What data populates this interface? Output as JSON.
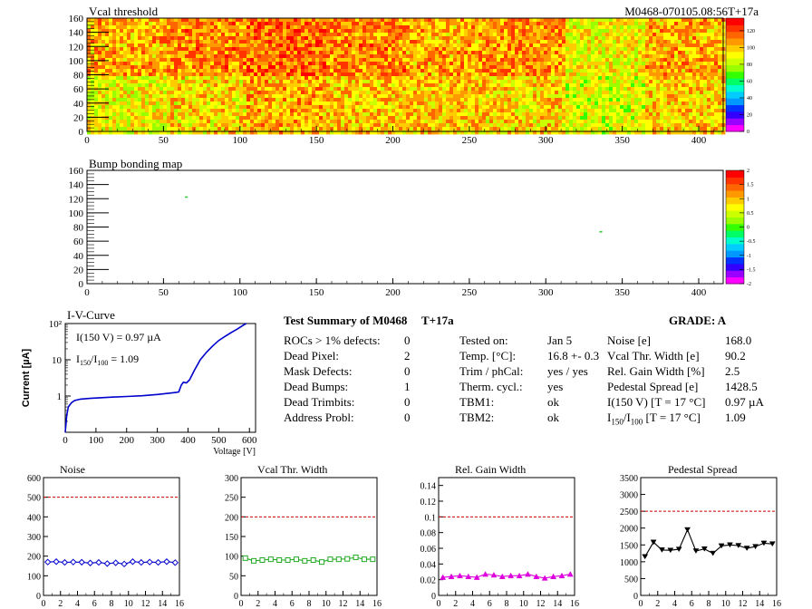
{
  "colors": {
    "heat": [
      "#ff00ff",
      "#9900ff",
      "#3300ff",
      "#0033ff",
      "#0099ff",
      "#00ccff",
      "#00ffcc",
      "#00ff66",
      "#33ff00",
      "#99ff00",
      "#ccff00",
      "#ffff00",
      "#ffcc00",
      "#ff9900",
      "#ff6600",
      "#ff3300",
      "#ff0000"
    ],
    "curve_blue": "#0000cc",
    "limit_red": "#cc0000",
    "noise_series": "#0000cc",
    "vcal_series": "#22aa22",
    "gain_series": "#dd00dd",
    "ped_series": "#000000"
  },
  "chart_data": [
    {
      "type": "heatmap",
      "title": "Vcal threshold",
      "header_right": "M0468-070105.08:56T+17a",
      "xlim": [
        0,
        416
      ],
      "ylim": [
        0,
        160
      ],
      "x_ticks": [
        0,
        50,
        100,
        150,
        200,
        250,
        300,
        350,
        400
      ],
      "y_ticks": [
        0,
        20,
        40,
        60,
        80,
        100,
        120,
        140,
        160
      ],
      "z_ticks": [
        0,
        20,
        40,
        60,
        80,
        100,
        120
      ],
      "zlim": [
        0,
        135
      ],
      "roc_means_top": [
        104,
        110,
        114,
        110,
        104,
        108,
        90,
        104
      ],
      "roc_means_bottom": [
        90,
        96,
        104,
        100,
        100,
        96,
        86,
        98
      ]
    },
    {
      "type": "heatmap",
      "title": "Bump bonding map",
      "xlim": [
        0,
        416
      ],
      "ylim": [
        0,
        160
      ],
      "x_ticks": [
        0,
        50,
        100,
        150,
        200,
        250,
        300,
        350,
        400
      ],
      "y_ticks": [
        0,
        20,
        40,
        60,
        80,
        100,
        120,
        140,
        160
      ],
      "z_ticks": [
        "2",
        "1.5",
        "1",
        "0.5",
        "0",
        "-0.5",
        "-1",
        "-1.5",
        "-2"
      ],
      "zlim": [
        -2,
        2
      ],
      "points": [
        {
          "x": 65,
          "y": 122,
          "z": 0
        },
        {
          "x": 336,
          "y": 73,
          "z": 0
        }
      ]
    },
    {
      "type": "line",
      "title": "I-V-Curve",
      "xlabel": "Voltage [V]",
      "ylabel": "Current [µA]",
      "x_ticks": [
        0,
        100,
        200,
        300,
        400,
        500,
        600
      ],
      "xlim": [
        0,
        620
      ],
      "ylim": [
        0.1,
        100
      ],
      "y_scale": "log",
      "y_ticks": [
        "1",
        "10",
        "10²"
      ],
      "annotation_1": "I(150 V) = 0.97 µA",
      "annotation_2_main": "I",
      "annotation_2_sub1": "150",
      "annotation_2_mid": "/I",
      "annotation_2_sub2": "100",
      "annotation_2_val": " =  1.09",
      "x": [
        0,
        5,
        10,
        20,
        30,
        50,
        80,
        120,
        160,
        200,
        250,
        300,
        340,
        360,
        370,
        378,
        385,
        395,
        405,
        420,
        440,
        460,
        480,
        500,
        520,
        540,
        560,
        580,
        590
      ],
      "y": [
        0.1,
        0.3,
        0.5,
        0.65,
        0.75,
        0.82,
        0.86,
        0.9,
        0.94,
        0.97,
        1.02,
        1.1,
        1.2,
        1.25,
        1.3,
        2.0,
        2.4,
        2.3,
        2.8,
        5.0,
        10,
        16,
        24,
        34,
        44,
        56,
        70,
        90,
        100
      ]
    },
    {
      "type": "line",
      "title": "Noise",
      "x_ticks": [
        0,
        2,
        4,
        6,
        8,
        10,
        12,
        14,
        16
      ],
      "y_ticks": [
        0,
        100,
        200,
        300,
        400,
        500,
        600
      ],
      "xlim": [
        0,
        16
      ],
      "ylim": [
        0,
        600
      ],
      "limit": 500,
      "x": [
        0.5,
        1.5,
        2.5,
        3.5,
        4.5,
        5.5,
        6.5,
        7.5,
        8.5,
        9.5,
        10.5,
        11.5,
        12.5,
        13.5,
        14.5,
        15.5
      ],
      "y": [
        170,
        172,
        168,
        170,
        169,
        165,
        168,
        162,
        166,
        160,
        172,
        168,
        170,
        168,
        172,
        167
      ]
    },
    {
      "type": "line",
      "title": "Vcal Thr. Width",
      "x_ticks": [
        0,
        2,
        4,
        6,
        8,
        10,
        12,
        14,
        16
      ],
      "y_ticks": [
        0,
        50,
        100,
        150,
        200,
        250,
        300
      ],
      "xlim": [
        0,
        16
      ],
      "ylim": [
        0,
        300
      ],
      "limit": 200,
      "x": [
        0.5,
        1.5,
        2.5,
        3.5,
        4.5,
        5.5,
        6.5,
        7.5,
        8.5,
        9.5,
        10.5,
        11.5,
        12.5,
        13.5,
        14.5,
        15.5
      ],
      "y": [
        95,
        88,
        90,
        92,
        90,
        90,
        92,
        88,
        90,
        85,
        92,
        92,
        93,
        97,
        92,
        92
      ]
    },
    {
      "type": "line",
      "title": "Rel. Gain Width",
      "x_ticks": [
        0,
        2,
        4,
        6,
        8,
        10,
        12,
        14,
        16
      ],
      "y_ticks": [
        "0",
        "0.02",
        "0.04",
        "0.06",
        "0.08",
        "0.1",
        "0.12",
        "0.14"
      ],
      "xlim": [
        0,
        16
      ],
      "ylim": [
        0,
        0.15
      ],
      "limit": 0.1,
      "x": [
        0.5,
        1.5,
        2.5,
        3.5,
        4.5,
        5.5,
        6.5,
        7.5,
        8.5,
        9.5,
        10.5,
        11.5,
        12.5,
        13.5,
        14.5,
        15.5
      ],
      "y": [
        0.023,
        0.024,
        0.025,
        0.024,
        0.023,
        0.027,
        0.026,
        0.024,
        0.025,
        0.025,
        0.027,
        0.024,
        0.022,
        0.024,
        0.025,
        0.027
      ]
    },
    {
      "type": "line",
      "title": "Pedestal Spread",
      "x_ticks": [
        0,
        2,
        4,
        6,
        8,
        10,
        12,
        14,
        16
      ],
      "y_ticks": [
        0,
        500,
        1000,
        1500,
        2000,
        2500,
        3000,
        3500
      ],
      "xlim": [
        0,
        16
      ],
      "ylim": [
        0,
        3500
      ],
      "limit": 2500,
      "x": [
        0.5,
        1.5,
        2.5,
        3.5,
        4.5,
        5.5,
        6.5,
        7.5,
        8.5,
        9.5,
        10.5,
        11.5,
        12.5,
        13.5,
        14.5,
        15.5
      ],
      "y": [
        1150,
        1580,
        1350,
        1340,
        1370,
        1950,
        1320,
        1380,
        1250,
        1470,
        1500,
        1480,
        1400,
        1450,
        1550,
        1530
      ]
    }
  ],
  "summary": {
    "title": "Test Summary of M0468",
    "tag": "T+17a",
    "grade_label": "GRADE:  A",
    "col1": [
      {
        "label": "ROCs > 1% defects:",
        "value": "0"
      },
      {
        "label": "Dead Pixel:",
        "value": "2"
      },
      {
        "label": "Mask Defects:",
        "value": "0"
      },
      {
        "label": "Dead Bumps:",
        "value": "1"
      },
      {
        "label": "Dead Trimbits:",
        "value": "0"
      },
      {
        "label": "Address Probl:",
        "value": "0"
      }
    ],
    "col2": [
      {
        "label": "Tested on:",
        "value": "Jan 5"
      },
      {
        "label": "Temp. [°C]:",
        "value": "16.8 +- 0.3"
      },
      {
        "label": "Trim / phCal:",
        "value": "yes / yes"
      },
      {
        "label": "Therm. cycl.:",
        "value": "yes"
      },
      {
        "label": "TBM1:",
        "value": "ok"
      },
      {
        "label": "TBM2:",
        "value": "ok"
      }
    ],
    "col3": [
      {
        "label": "Noise [e]",
        "value": "168.0"
      },
      {
        "label": "Vcal Thr. Width [e]",
        "value": "90.2"
      },
      {
        "label": "Rel. Gain Width [%]",
        "value": "2.5"
      },
      {
        "label": "Pedestal Spread [e]",
        "value": "1428.5"
      },
      {
        "label": "I(150 V) [T = 17 °C]",
        "value": "0.97 µA"
      },
      {
        "label": "I150/I100  [T = 17 °C]",
        "value": "1.09"
      }
    ],
    "col3_last_main": "I",
    "col3_last_sub1": "150",
    "col3_last_mid": "/I",
    "col3_last_sub2": "100",
    "col3_last_tail": "  [T = 17 °C]"
  }
}
